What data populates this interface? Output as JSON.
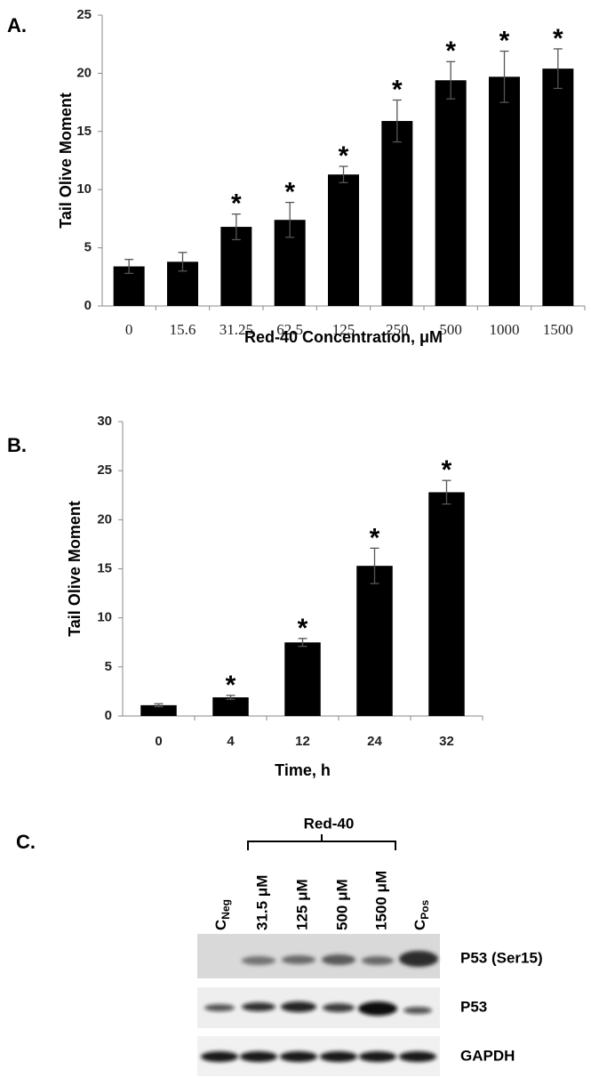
{
  "chart_data": [
    {
      "type": "bar",
      "panel": "A.",
      "ylabel": "Tail Olive Moment",
      "xlabel": "Red-40 Concentration, μM",
      "categories": [
        "0",
        "15.6",
        "31.25",
        "62.5",
        "125",
        "250",
        "500",
        "1000",
        "1500"
      ],
      "values": [
        3.4,
        3.8,
        6.8,
        7.4,
        11.3,
        15.9,
        19.4,
        19.7,
        20.4
      ],
      "errors": [
        0.6,
        0.8,
        1.1,
        1.5,
        0.7,
        1.8,
        1.6,
        2.2,
        1.7
      ],
      "significance": [
        null,
        null,
        "*",
        "*",
        "*",
        "*",
        "*",
        "*",
        "*"
      ],
      "color": "#000000",
      "ylim": [
        0,
        25
      ],
      "yticks": [
        0,
        5,
        10,
        15,
        20,
        25
      ]
    },
    {
      "type": "bar",
      "panel": "B.",
      "ylabel": "Tail Olive Moment",
      "xlabel": "Time, h",
      "categories": [
        "0",
        "4",
        "12",
        "24",
        "32"
      ],
      "values": [
        1.1,
        1.9,
        7.5,
        15.3,
        22.8
      ],
      "errors": [
        0.15,
        0.2,
        0.4,
        1.8,
        1.2
      ],
      "significance": [
        null,
        "*",
        "*",
        "*",
        "*"
      ],
      "color": "#000000",
      "ylim": [
        0,
        30
      ],
      "yticks": [
        0,
        5,
        10,
        15,
        20,
        25,
        30
      ]
    }
  ],
  "blot": {
    "panel": "C.",
    "group": "Red-40",
    "lanes": [
      {
        "main": "C",
        "sub": "Neg"
      },
      "31.5 μM",
      "125 μM",
      "500 μM",
      "1500 μM",
      {
        "main": "C",
        "sub": "Pos"
      }
    ],
    "rows": [
      "P53 (Ser15)",
      "P53",
      "GAPDH"
    ]
  }
}
